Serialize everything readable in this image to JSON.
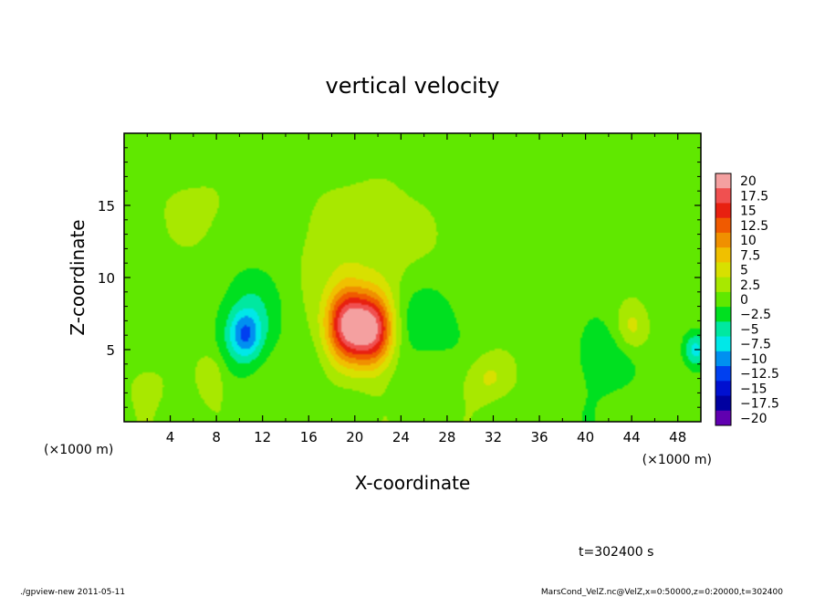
{
  "chart_data": {
    "type": "heatmap",
    "title": "vertical velocity",
    "xlabel": "X-coordinate",
    "ylabel": "Z-coordinate",
    "x_unit": "(×1000 m)",
    "x_unit_secondary": "(×1000 m)",
    "xlim": [
      0,
      50
    ],
    "ylim": [
      0,
      20
    ],
    "x_ticks": [
      "4",
      "8",
      "12",
      "16",
      "20",
      "24",
      "28",
      "32",
      "36",
      "40",
      "44",
      "48"
    ],
    "y_ticks": [
      "5",
      "10",
      "15"
    ],
    "colorbar": {
      "labels": [
        "20",
        "17.5",
        "15",
        "12.5",
        "10",
        "7.5",
        "5",
        "2.5",
        "0",
        "−2.5",
        "−5",
        "−7.5",
        "−10",
        "−12.5",
        "−15",
        "−17.5",
        "−20"
      ],
      "colors": [
        "#f4a0a0",
        "#f05050",
        "#e82010",
        "#f05a00",
        "#f09000",
        "#f0c000",
        "#d8e000",
        "#a8e800",
        "#60e800",
        "#00e020",
        "#00e8a0",
        "#00e8e8",
        "#0090f0",
        "#0040f0",
        "#0010d0",
        "#0000a0",
        "#6000b0"
      ]
    },
    "background_value": 0,
    "features": [
      {
        "x": 20.5,
        "z": 6.5,
        "value": 12.5,
        "sx": 1.8,
        "sz": 1.6
      },
      {
        "x": 19.2,
        "z": 7.0,
        "value": 10,
        "sx": 1.2,
        "sz": 2.0
      },
      {
        "x": 21.8,
        "z": 6.2,
        "value": 10,
        "sx": 1.2,
        "sz": 2.0
      },
      {
        "x": 10.5,
        "z": 6.0,
        "value": -9,
        "sx": 1.0,
        "sz": 1.2
      },
      {
        "x": 11.0,
        "z": 7.5,
        "value": -4,
        "sx": 2.0,
        "sz": 2.5
      },
      {
        "x": 25.5,
        "z": 7.0,
        "value": -4,
        "sx": 2.5,
        "sz": 2.0
      },
      {
        "x": 44.0,
        "z": 6.5,
        "value": 5,
        "sx": 1.0,
        "sz": 1.2
      },
      {
        "x": 49.5,
        "z": 5.0,
        "value": -7,
        "sx": 0.7,
        "sz": 0.8
      },
      {
        "x": 7.5,
        "z": 3.0,
        "value": 4,
        "sx": 0.8,
        "sz": 1.2
      },
      {
        "x": 31.5,
        "z": 3.0,
        "value": 4,
        "sx": 1.5,
        "sz": 1.2
      },
      {
        "x": 41.5,
        "z": 4.5,
        "value": -3,
        "sx": 2.0,
        "sz": 2.0
      },
      {
        "x": 2.0,
        "z": 2.5,
        "value": 2.5,
        "sx": 1.2,
        "sz": 1.2
      },
      {
        "x": 6.0,
        "z": 14.5,
        "value": 1.5,
        "sx": 4.0,
        "sz": 3.0
      },
      {
        "x": 21.0,
        "z": 12.0,
        "value": 2.5,
        "sx": 5.0,
        "sz": 4.0
      }
    ]
  },
  "time_label": "t=302400 s",
  "footer": {
    "left": "./gpview-new  2011-05-11",
    "right": "MarsCond_VelZ.nc@VelZ,x=0:50000,z=0:20000,t=302400"
  }
}
